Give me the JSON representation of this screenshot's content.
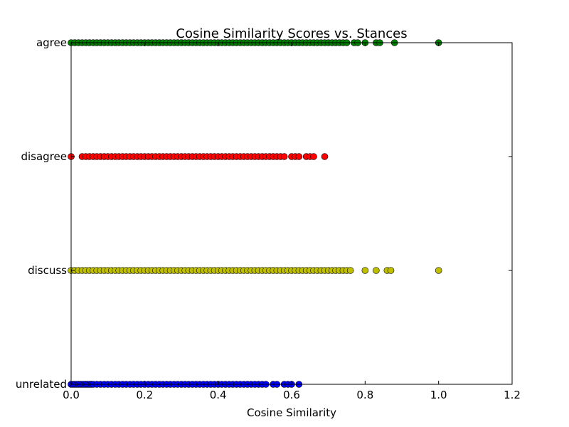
{
  "chart_data": {
    "type": "scatter",
    "title": "Cosine Similarity Scores vs. Stances",
    "xlabel": "Cosine Similarity",
    "ylabel": "",
    "xlim": [
      0.0,
      1.2
    ],
    "x_ticks": [
      "0.0",
      "0.2",
      "0.4",
      "0.6",
      "0.8",
      "1.0",
      "1.2"
    ],
    "x_tick_values": [
      0.0,
      0.2,
      0.4,
      0.6,
      0.8,
      1.0,
      1.2
    ],
    "categories": [
      "unrelated",
      "discuss",
      "disagree",
      "agree"
    ],
    "grid": false,
    "legend": "none",
    "series": [
      {
        "category": "agree",
        "color": "#008000",
        "x": [
          0.0,
          0.01,
          0.02,
          0.03,
          0.04,
          0.05,
          0.06,
          0.07,
          0.08,
          0.09,
          0.1,
          0.11,
          0.12,
          0.13,
          0.14,
          0.15,
          0.16,
          0.17,
          0.18,
          0.19,
          0.2,
          0.21,
          0.22,
          0.23,
          0.24,
          0.25,
          0.26,
          0.27,
          0.28,
          0.29,
          0.3,
          0.31,
          0.32,
          0.33,
          0.34,
          0.35,
          0.36,
          0.37,
          0.38,
          0.39,
          0.4,
          0.41,
          0.42,
          0.43,
          0.44,
          0.45,
          0.46,
          0.47,
          0.48,
          0.49,
          0.5,
          0.51,
          0.52,
          0.53,
          0.54,
          0.55,
          0.56,
          0.57,
          0.58,
          0.59,
          0.6,
          0.61,
          0.62,
          0.63,
          0.64,
          0.65,
          0.66,
          0.67,
          0.68,
          0.69,
          0.7,
          0.71,
          0.72,
          0.73,
          0.74,
          0.75,
          0.77,
          0.78,
          0.8,
          0.83,
          0.84,
          0.88,
          1.0
        ]
      },
      {
        "category": "disagree",
        "color": "#ff0000",
        "x": [
          0.0,
          0.03,
          0.04,
          0.05,
          0.06,
          0.07,
          0.08,
          0.09,
          0.1,
          0.11,
          0.12,
          0.13,
          0.14,
          0.15,
          0.16,
          0.17,
          0.18,
          0.19,
          0.2,
          0.21,
          0.22,
          0.23,
          0.24,
          0.25,
          0.26,
          0.27,
          0.28,
          0.29,
          0.3,
          0.31,
          0.32,
          0.33,
          0.34,
          0.35,
          0.36,
          0.37,
          0.38,
          0.39,
          0.4,
          0.41,
          0.42,
          0.43,
          0.44,
          0.45,
          0.46,
          0.47,
          0.48,
          0.49,
          0.5,
          0.51,
          0.52,
          0.53,
          0.54,
          0.55,
          0.56,
          0.57,
          0.58,
          0.6,
          0.61,
          0.62,
          0.64,
          0.65,
          0.66,
          0.69
        ]
      },
      {
        "category": "discuss",
        "color": "#bfbf00",
        "x": [
          0.0,
          0.01,
          0.02,
          0.03,
          0.04,
          0.05,
          0.06,
          0.07,
          0.08,
          0.09,
          0.1,
          0.11,
          0.12,
          0.13,
          0.14,
          0.15,
          0.16,
          0.17,
          0.18,
          0.19,
          0.2,
          0.21,
          0.22,
          0.23,
          0.24,
          0.25,
          0.26,
          0.27,
          0.28,
          0.29,
          0.3,
          0.31,
          0.32,
          0.33,
          0.34,
          0.35,
          0.36,
          0.37,
          0.38,
          0.39,
          0.4,
          0.41,
          0.42,
          0.43,
          0.44,
          0.45,
          0.46,
          0.47,
          0.48,
          0.49,
          0.5,
          0.51,
          0.52,
          0.53,
          0.54,
          0.55,
          0.56,
          0.57,
          0.58,
          0.59,
          0.6,
          0.61,
          0.62,
          0.63,
          0.64,
          0.65,
          0.66,
          0.67,
          0.68,
          0.69,
          0.7,
          0.71,
          0.72,
          0.73,
          0.74,
          0.75,
          0.76,
          0.8,
          0.83,
          0.86,
          0.87,
          1.0
        ]
      },
      {
        "category": "unrelated",
        "color": "#0000ff",
        "x": [
          0.0,
          0.005,
          0.01,
          0.015,
          0.02,
          0.025,
          0.03,
          0.035,
          0.04,
          0.045,
          0.05,
          0.055,
          0.06,
          0.07,
          0.08,
          0.09,
          0.1,
          0.11,
          0.12,
          0.13,
          0.14,
          0.15,
          0.16,
          0.17,
          0.18,
          0.19,
          0.2,
          0.21,
          0.22,
          0.23,
          0.24,
          0.25,
          0.26,
          0.27,
          0.28,
          0.29,
          0.3,
          0.31,
          0.32,
          0.33,
          0.34,
          0.35,
          0.36,
          0.37,
          0.38,
          0.39,
          0.4,
          0.41,
          0.42,
          0.43,
          0.44,
          0.45,
          0.46,
          0.47,
          0.48,
          0.49,
          0.5,
          0.51,
          0.52,
          0.53,
          0.55,
          0.56,
          0.58,
          0.59,
          0.6,
          0.62
        ]
      }
    ]
  }
}
